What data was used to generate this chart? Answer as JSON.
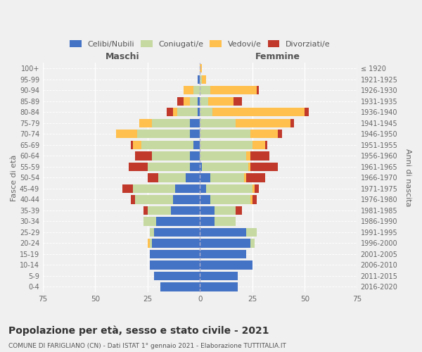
{
  "age_groups": [
    "100+",
    "95-99",
    "90-94",
    "85-89",
    "80-84",
    "75-79",
    "70-74",
    "65-69",
    "60-64",
    "55-59",
    "50-54",
    "45-49",
    "40-44",
    "35-39",
    "30-34",
    "25-29",
    "20-24",
    "15-19",
    "10-14",
    "5-9",
    "0-4"
  ],
  "birth_years": [
    "≤ 1920",
    "1921-1925",
    "1926-1930",
    "1931-1935",
    "1936-1940",
    "1941-1945",
    "1946-1950",
    "1951-1955",
    "1956-1960",
    "1961-1965",
    "1966-1970",
    "1971-1975",
    "1976-1980",
    "1981-1985",
    "1986-1990",
    "1991-1995",
    "1996-2000",
    "2001-2005",
    "2006-2010",
    "2011-2015",
    "2016-2020"
  ],
  "colors": {
    "celibe": "#4472c4",
    "coniugato": "#c5d9a0",
    "vedovo": "#ffc04d",
    "divorziato": "#c0392b"
  },
  "maschi": {
    "celibe": [
      0,
      1,
      0,
      1,
      1,
      5,
      5,
      3,
      5,
      5,
      7,
      12,
      13,
      14,
      21,
      22,
      23,
      24,
      24,
      22,
      19
    ],
    "coniugato": [
      0,
      0,
      3,
      4,
      10,
      18,
      25,
      25,
      18,
      20,
      13,
      20,
      18,
      11,
      6,
      2,
      1,
      0,
      0,
      0,
      0
    ],
    "vedovo": [
      0,
      0,
      5,
      3,
      2,
      6,
      10,
      4,
      0,
      0,
      0,
      0,
      0,
      0,
      0,
      0,
      1,
      0,
      0,
      0,
      0
    ],
    "divorziato": [
      0,
      0,
      0,
      3,
      3,
      0,
      0,
      1,
      8,
      9,
      5,
      5,
      2,
      2,
      0,
      0,
      0,
      0,
      0,
      0,
      0
    ]
  },
  "femmine": {
    "celibe": [
      0,
      0,
      0,
      0,
      0,
      0,
      0,
      0,
      0,
      1,
      5,
      3,
      5,
      7,
      7,
      22,
      24,
      22,
      25,
      18,
      18
    ],
    "coniugato": [
      0,
      1,
      5,
      4,
      6,
      17,
      24,
      25,
      22,
      22,
      16,
      22,
      19,
      10,
      10,
      5,
      2,
      0,
      0,
      0,
      0
    ],
    "vedovo": [
      1,
      2,
      22,
      12,
      44,
      26,
      13,
      6,
      2,
      1,
      1,
      1,
      1,
      0,
      0,
      0,
      0,
      0,
      0,
      0,
      0
    ],
    "divorziato": [
      0,
      0,
      1,
      4,
      2,
      2,
      2,
      1,
      9,
      13,
      9,
      2,
      2,
      3,
      0,
      0,
      0,
      0,
      0,
      0,
      0
    ]
  },
  "title": "Popolazione per età, sesso e stato civile - 2021",
  "subtitle": "COMUNE DI FARIGLIANO (CN) - Dati ISTAT 1° gennaio 2021 - Elaborazione TUTTITALIA.IT",
  "xlabel_left": "Maschi",
  "xlabel_right": "Femmine",
  "ylabel_left": "Fasce di età",
  "ylabel_right": "Anni di nascita",
  "xlim": 75,
  "bg_color": "#f0f0f0",
  "legend_labels": [
    "Celibi/Nubili",
    "Coniugati/e",
    "Vedovi/e",
    "Divorziati/e"
  ]
}
